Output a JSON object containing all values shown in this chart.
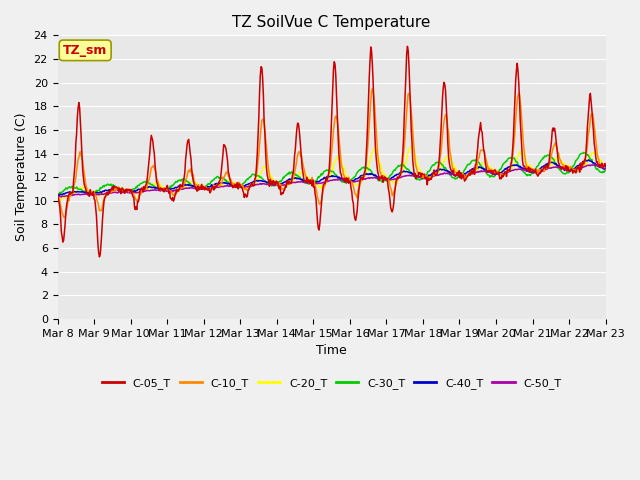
{
  "title": "TZ SoilVue C Temperature",
  "ylabel": "Soil Temperature (C)",
  "xlabel": "Time",
  "annotation": "TZ_sm",
  "ylim": [
    0,
    24
  ],
  "yticks": [
    0,
    2,
    4,
    6,
    8,
    10,
    12,
    14,
    16,
    18,
    20,
    22,
    24
  ],
  "x_tick_labels": [
    "Mar 8",
    "Mar 9",
    "Mar 10",
    "Mar 11",
    "Mar 12",
    "Mar 13",
    "Mar 14",
    "Mar 15",
    "Mar 16",
    "Mar 17",
    "Mar 18",
    "Mar 19",
    "Mar 20",
    "Mar 21",
    "Mar 22",
    "Mar 23"
  ],
  "series_colors": {
    "C-05_T": "#cc0000",
    "C-10_T": "#ff8800",
    "C-20_T": "#ffff00",
    "C-30_T": "#00cc00",
    "C-40_T": "#0000cc",
    "C-50_T": "#aa00aa"
  },
  "background_color": "#e8e8e8",
  "grid_color": "#ffffff",
  "num_days": 15,
  "annotation_bg": "#ffff99",
  "annotation_border": "#999900",
  "annotation_text_color": "#cc0000",
  "fig_bg": "#f0f0f0",
  "title_fontsize": 11,
  "axis_label_fontsize": 9,
  "tick_fontsize": 8,
  "legend_fontsize": 8
}
